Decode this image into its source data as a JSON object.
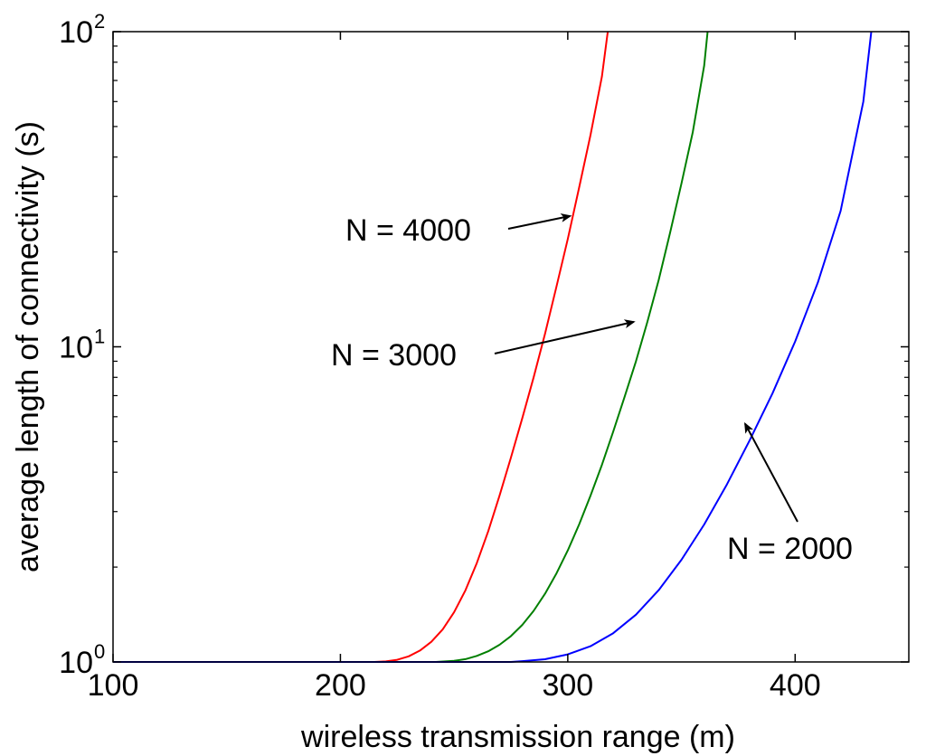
{
  "chart_data": {
    "type": "line",
    "title": "",
    "xlabel": "wireless transmission range (m)",
    "ylabel": "average length of connectivity (s)",
    "xlim": [
      100,
      450
    ],
    "ylim": [
      1,
      100
    ],
    "yscale": "log",
    "grid": false,
    "x_ticks": [
      {
        "value": 100,
        "label": "100"
      },
      {
        "value": 200,
        "label": "200"
      },
      {
        "value": 300,
        "label": "300"
      },
      {
        "value": 400,
        "label": "400"
      }
    ],
    "y_ticks": [
      {
        "value": 1,
        "base": "10",
        "exp": "0"
      },
      {
        "value": 10,
        "base": "10",
        "exp": "1"
      },
      {
        "value": 100,
        "base": "10",
        "exp": "2"
      }
    ],
    "series": [
      {
        "name": "N = 4000",
        "color": "#ff0000",
        "x": [
          100,
          215,
          220,
          225,
          230,
          235,
          240,
          245,
          250,
          255,
          260,
          265,
          270,
          275,
          280,
          285,
          290,
          295,
          300,
          305,
          310,
          315,
          317.6
        ],
        "y": [
          1,
          1,
          1.004,
          1.016,
          1.042,
          1.087,
          1.159,
          1.269,
          1.437,
          1.688,
          2.06,
          2.6,
          3.37,
          4.45,
          5.94,
          8.0,
          11.0,
          15.5,
          22.0,
          32.0,
          47.0,
          72.0,
          100
        ]
      },
      {
        "name": "N = 3000",
        "color": "#007f00",
        "x": [
          100,
          242,
          250,
          255,
          260,
          265,
          270,
          275,
          280,
          285,
          290,
          295,
          300,
          305,
          310,
          315,
          320,
          325,
          330,
          335,
          340,
          345,
          350,
          355,
          360,
          361.5
        ],
        "y": [
          1,
          1,
          1.008,
          1.021,
          1.045,
          1.081,
          1.134,
          1.208,
          1.311,
          1.453,
          1.646,
          1.908,
          2.26,
          2.73,
          3.37,
          4.22,
          5.38,
          6.94,
          9.0,
          12.0,
          16.3,
          23.0,
          33.0,
          48.0,
          78.0,
          100
        ]
      },
      {
        "name": "N = 2000",
        "color": "#0000ff",
        "x": [
          100,
          275,
          280,
          290,
          300,
          310,
          320,
          330,
          340,
          350,
          360,
          370,
          380,
          390,
          400,
          410,
          420,
          430,
          433.5
        ],
        "y": [
          1,
          1,
          1.006,
          1.02,
          1.057,
          1.122,
          1.234,
          1.413,
          1.69,
          2.11,
          2.73,
          3.66,
          5.05,
          7.1,
          10.4,
          16.0,
          27.0,
          60.0,
          100
        ]
      }
    ],
    "annotations": [
      {
        "text": "N = 4000",
        "series": "N = 4000",
        "arrow_to": {
          "x": 301,
          "y": 26
        }
      },
      {
        "text": "N = 3000",
        "series": "N = 3000",
        "arrow_to": {
          "x": 329,
          "y": 12
        }
      },
      {
        "text": "N = 2000",
        "series": "N = 2000",
        "arrow_to": {
          "x": 378,
          "y": 5.7
        }
      }
    ]
  }
}
